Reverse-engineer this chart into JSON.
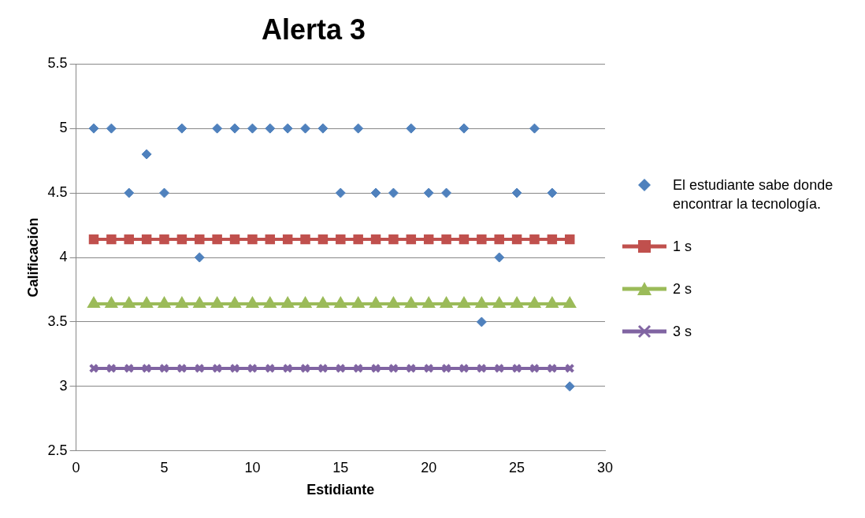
{
  "chart_data": {
    "type": "scatter",
    "title": "Alerta 3",
    "xlabel": "Estidiante",
    "ylabel": "Calificación",
    "x": [
      1,
      2,
      3,
      4,
      5,
      6,
      7,
      8,
      9,
      10,
      11,
      12,
      13,
      14,
      15,
      16,
      17,
      18,
      19,
      20,
      21,
      22,
      23,
      24,
      25,
      26,
      27,
      28
    ],
    "series": [
      {
        "name": "El estudiante sabe donde encontrar la tecnología.",
        "type": "scatter",
        "marker": "diamond",
        "color": "#4f81bd",
        "values": [
          5,
          5,
          4.5,
          4.8,
          4.5,
          5,
          4,
          5,
          5,
          5,
          5,
          5,
          5,
          5,
          4.5,
          5,
          4.5,
          4.5,
          5,
          4.5,
          4.5,
          5,
          3.5,
          4,
          4.5,
          5,
          4.5,
          3
        ]
      },
      {
        "name": "1 s",
        "type": "line",
        "marker": "square",
        "color": "#c0504d",
        "values": [
          4.14,
          4.14,
          4.14,
          4.14,
          4.14,
          4.14,
          4.14,
          4.14,
          4.14,
          4.14,
          4.14,
          4.14,
          4.14,
          4.14,
          4.14,
          4.14,
          4.14,
          4.14,
          4.14,
          4.14,
          4.14,
          4.14,
          4.14,
          4.14,
          4.14,
          4.14,
          4.14,
          4.14
        ]
      },
      {
        "name": "2 s",
        "type": "line",
        "marker": "triangle",
        "color": "#9bbb59",
        "values": [
          3.64,
          3.64,
          3.64,
          3.64,
          3.64,
          3.64,
          3.64,
          3.64,
          3.64,
          3.64,
          3.64,
          3.64,
          3.64,
          3.64,
          3.64,
          3.64,
          3.64,
          3.64,
          3.64,
          3.64,
          3.64,
          3.64,
          3.64,
          3.64,
          3.64,
          3.64,
          3.64,
          3.64
        ]
      },
      {
        "name": "3 s",
        "type": "line",
        "marker": "cross",
        "color": "#8064a2",
        "values": [
          3.14,
          3.14,
          3.14,
          3.14,
          3.14,
          3.14,
          3.14,
          3.14,
          3.14,
          3.14,
          3.14,
          3.14,
          3.14,
          3.14,
          3.14,
          3.14,
          3.14,
          3.14,
          3.14,
          3.14,
          3.14,
          3.14,
          3.14,
          3.14,
          3.14,
          3.14,
          3.14,
          3.14
        ]
      }
    ],
    "xlim": [
      0,
      30
    ],
    "xticks": [
      0,
      5,
      10,
      15,
      20,
      25,
      30
    ],
    "ylim": [
      2.5,
      5.5
    ],
    "yticks": [
      2.5,
      3,
      3.5,
      4,
      4.5,
      5,
      5.5
    ],
    "grid": "y",
    "legend": "right"
  }
}
